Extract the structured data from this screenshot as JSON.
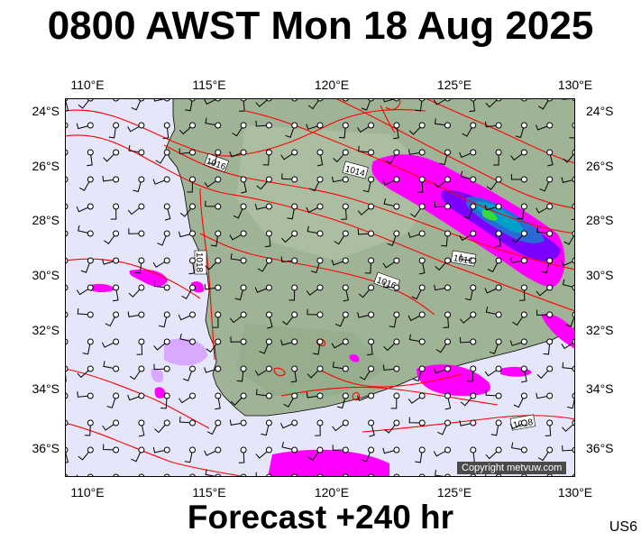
{
  "header": {
    "title": "0800 AWST Mon 18 Aug 2025"
  },
  "footer": {
    "forecast": "Forecast +240 hr",
    "code": "US6"
  },
  "map": {
    "lon_labels": [
      "110°E",
      "115°E",
      "120°E",
      "125°E",
      "130°E"
    ],
    "lat_labels": [
      "24°S",
      "26°S",
      "28°S",
      "30°S",
      "32°S",
      "34°S",
      "36°S"
    ],
    "isobar_labels": [
      "1016",
      "1014",
      "1018",
      "1016",
      "1016",
      "1018"
    ],
    "copyright": "Copyright metvuw.com",
    "colors": {
      "ocean": "#e6e6fa",
      "land": "#9fb496",
      "isobar": "#ff0000",
      "rain_light": "#ff00ff",
      "rain_moderate": "#7b00ff",
      "rain_heavy": "#2222cc",
      "rain_peak": "#00cc44"
    }
  }
}
